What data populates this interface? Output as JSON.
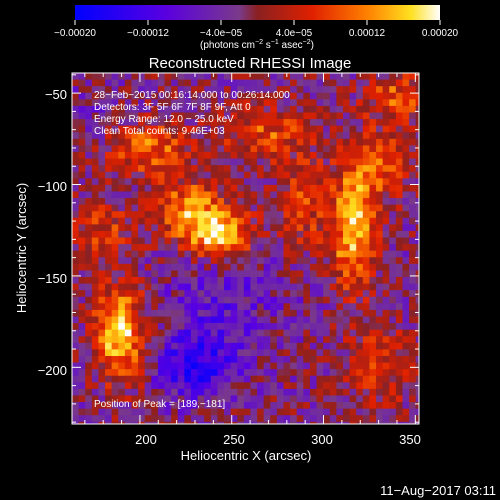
{
  "chart_data": {
    "type": "heatmap",
    "title": "Reconstructed RHESSI Image",
    "xlabel": "Heliocentric X (arcsec)",
    "ylabel": "Heliocentric Y (arcsec)",
    "xlim": [
      163,
      352
    ],
    "ylim": [
      -231,
      -39
    ],
    "x_ticks": [
      200,
      250,
      300,
      350
    ],
    "y_ticks": [
      -50,
      -100,
      -150,
      -200
    ],
    "x_tick_labels": [
      "200",
      "250",
      "300",
      "350"
    ],
    "y_tick_labels": [
      "−50",
      "−100",
      "−150",
      "−200"
    ],
    "colorbar": {
      "min": -0.0002,
      "max": 0.0002,
      "tick_values": [
        -0.0002,
        -0.00012,
        -4e-05,
        4e-05,
        0.00012,
        0.0002
      ],
      "tick_labels": [
        "−0.00020",
        "−0.00012",
        "−4.0e−05",
        "4.0e−05",
        "0.00012",
        "0.00020"
      ],
      "unit_main": "(photons cm",
      "unit_sup1": "−2",
      "unit_mid": " s",
      "unit_sup2": "−1",
      "unit_mid2": " asec",
      "unit_sup3": "−2",
      "unit_end": ")"
    },
    "info_lines": [
      "28−Feb−2015 00:16:14.000 to 00:26:14.000",
      "Detectors: 3F 5F 6F 7F 8F 9F, Att 0",
      "Energy Range: 12.0 − 25.0 keV",
      "Clean    Total counts: 9.46E+03"
    ],
    "peak_label": "Position of Peak = [189,−181]",
    "peak": [
      189,
      -181
    ],
    "sources": [
      {
        "x": 189,
        "y": -181,
        "amp": 0.0002,
        "sx": 9,
        "sy": 18
      },
      {
        "x": 245,
        "y": -128,
        "amp": 0.00018,
        "sx": 12,
        "sy": 9
      },
      {
        "x": 228,
        "y": -115,
        "amp": 0.00015,
        "sx": 14,
        "sy": 12
      },
      {
        "x": 316,
        "y": -125,
        "amp": 0.00018,
        "sx": 8,
        "sy": 22
      },
      {
        "x": 330,
        "y": -90,
        "amp": 0.0001,
        "sx": 12,
        "sy": 14
      },
      {
        "x": 205,
        "y": -80,
        "amp": 0.00012,
        "sx": 16,
        "sy": 10
      },
      {
        "x": 268,
        "y": -72,
        "amp": 0.0001,
        "sx": 16,
        "sy": 10
      },
      {
        "x": 290,
        "y": -110,
        "amp": 8e-05,
        "sx": 10,
        "sy": 18
      },
      {
        "x": 330,
        "y": -200,
        "amp": 8e-05,
        "sx": 12,
        "sy": 16
      },
      {
        "x": 340,
        "y": -52,
        "amp": 0.0001,
        "sx": 12,
        "sy": 10
      },
      {
        "x": 180,
        "y": -125,
        "amp": 8e-05,
        "sx": 12,
        "sy": 10
      },
      {
        "x": 230,
        "y": -200,
        "amp": -0.00012,
        "sx": 14,
        "sy": 12
      },
      {
        "x": 245,
        "y": -165,
        "amp": -6e-05,
        "sx": 22,
        "sy": 24
      },
      {
        "x": 175,
        "y": -62,
        "amp": -3e-05,
        "sx": 12,
        "sy": 10
      }
    ],
    "footer_date": "11−Aug−2017 03:11"
  }
}
